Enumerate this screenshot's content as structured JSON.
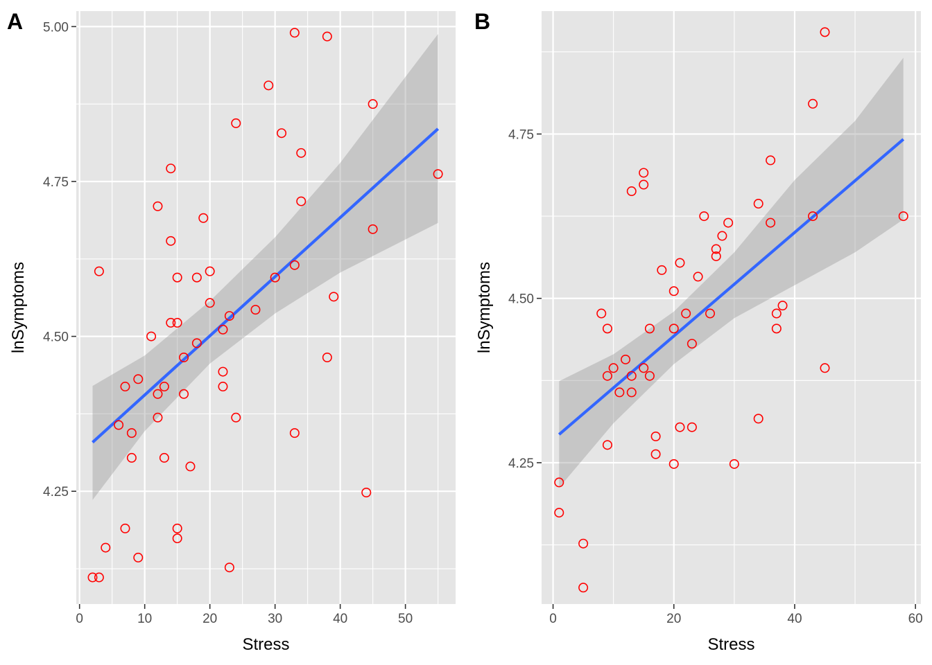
{
  "chart_data": [
    {
      "panel_label": "A",
      "type": "scatter",
      "xlabel": "Stress",
      "ylabel": "lnSymptoms",
      "xlim": [
        -0.5,
        57.7
      ],
      "ylim": [
        4.068,
        5.025
      ],
      "x_ticks": [
        0,
        10,
        20,
        30,
        40,
        50
      ],
      "y_ticks": [
        4.25,
        4.5,
        4.75,
        5.0
      ],
      "x_tick_labels": [
        "0",
        "10",
        "20",
        "30",
        "40",
        "50"
      ],
      "y_tick_labels": [
        "4.25",
        "4.50",
        "4.75",
        "5.00"
      ],
      "grid": true,
      "point_color": "#ff0000",
      "line_color": "#3366ff",
      "ribbon_color": "#999999",
      "points": [
        {
          "x": 2,
          "y": 4.111
        },
        {
          "x": 3,
          "y": 4.111
        },
        {
          "x": 3,
          "y": 4.605
        },
        {
          "x": 4,
          "y": 4.159
        },
        {
          "x": 6,
          "y": 4.357
        },
        {
          "x": 7,
          "y": 4.419
        },
        {
          "x": 7,
          "y": 4.19
        },
        {
          "x": 8,
          "y": 4.344
        },
        {
          "x": 8,
          "y": 4.304
        },
        {
          "x": 9,
          "y": 4.431
        },
        {
          "x": 9,
          "y": 4.143
        },
        {
          "x": 11,
          "y": 4.5
        },
        {
          "x": 12,
          "y": 4.71
        },
        {
          "x": 12,
          "y": 4.407
        },
        {
          "x": 12,
          "y": 4.369
        },
        {
          "x": 13,
          "y": 4.419
        },
        {
          "x": 13,
          "y": 4.304
        },
        {
          "x": 14,
          "y": 4.771
        },
        {
          "x": 14,
          "y": 4.654
        },
        {
          "x": 14,
          "y": 4.522
        },
        {
          "x": 15,
          "y": 4.595
        },
        {
          "x": 15,
          "y": 4.522
        },
        {
          "x": 15,
          "y": 4.19
        },
        {
          "x": 15,
          "y": 4.174
        },
        {
          "x": 16,
          "y": 4.466
        },
        {
          "x": 16,
          "y": 4.407
        },
        {
          "x": 17,
          "y": 4.29
        },
        {
          "x": 18,
          "y": 4.595
        },
        {
          "x": 18,
          "y": 4.489
        },
        {
          "x": 19,
          "y": 4.691
        },
        {
          "x": 20,
          "y": 4.605
        },
        {
          "x": 20,
          "y": 4.554
        },
        {
          "x": 22,
          "y": 4.511
        },
        {
          "x": 22,
          "y": 4.443
        },
        {
          "x": 22,
          "y": 4.419
        },
        {
          "x": 23,
          "y": 4.533
        },
        {
          "x": 23,
          "y": 4.127
        },
        {
          "x": 24,
          "y": 4.844
        },
        {
          "x": 24,
          "y": 4.369
        },
        {
          "x": 27,
          "y": 4.543
        },
        {
          "x": 29,
          "y": 4.905
        },
        {
          "x": 30,
          "y": 4.595
        },
        {
          "x": 31,
          "y": 4.828
        },
        {
          "x": 33,
          "y": 4.99
        },
        {
          "x": 33,
          "y": 4.615
        },
        {
          "x": 33,
          "y": 4.344
        },
        {
          "x": 34,
          "y": 4.796
        },
        {
          "x": 34,
          "y": 4.718
        },
        {
          "x": 38,
          "y": 4.984
        },
        {
          "x": 38,
          "y": 4.466
        },
        {
          "x": 39,
          "y": 4.564
        },
        {
          "x": 44,
          "y": 4.248
        },
        {
          "x": 45,
          "y": 4.875
        },
        {
          "x": 45,
          "y": 4.673
        },
        {
          "x": 55,
          "y": 4.762
        }
      ],
      "fit": {
        "x": [
          2,
          55
        ],
        "y": [
          4.329,
          4.835
        ]
      },
      "ribbon": [
        {
          "x": 2,
          "lo": 4.236,
          "hi": 4.42
        },
        {
          "x": 10,
          "lo": 4.347,
          "hi": 4.469
        },
        {
          "x": 20,
          "lo": 4.456,
          "hi": 4.557
        },
        {
          "x": 30,
          "lo": 4.537,
          "hi": 4.66
        },
        {
          "x": 40,
          "lo": 4.603,
          "hi": 4.78
        },
        {
          "x": 55,
          "lo": 4.683,
          "hi": 4.988
        }
      ]
    },
    {
      "panel_label": "B",
      "type": "scatter",
      "xlabel": "Stress",
      "ylabel": "lnSymptoms",
      "xlim": [
        -1.9,
        60.9
      ],
      "ylim": [
        4.035,
        4.937
      ],
      "x_ticks": [
        0,
        20,
        40,
        60
      ],
      "y_ticks": [
        4.25,
        4.5,
        4.75
      ],
      "x_tick_labels": [
        "0",
        "20",
        "40",
        "60"
      ],
      "y_tick_labels": [
        "4.25",
        "4.50",
        "4.75"
      ],
      "grid": true,
      "point_color": "#ff0000",
      "line_color": "#3366ff",
      "ribbon_color": "#999999",
      "points": [
        {
          "x": 1,
          "y": 4.22
        },
        {
          "x": 1,
          "y": 4.174
        },
        {
          "x": 5,
          "y": 4.127
        },
        {
          "x": 5,
          "y": 4.06
        },
        {
          "x": 8,
          "y": 4.477
        },
        {
          "x": 9,
          "y": 4.454
        },
        {
          "x": 9,
          "y": 4.382
        },
        {
          "x": 9,
          "y": 4.277
        },
        {
          "x": 10,
          "y": 4.394
        },
        {
          "x": 11,
          "y": 4.357
        },
        {
          "x": 12,
          "y": 4.407
        },
        {
          "x": 13,
          "y": 4.382
        },
        {
          "x": 13,
          "y": 4.357
        },
        {
          "x": 13,
          "y": 4.663
        },
        {
          "x": 15,
          "y": 4.691
        },
        {
          "x": 15,
          "y": 4.673
        },
        {
          "x": 15,
          "y": 4.394
        },
        {
          "x": 16,
          "y": 4.454
        },
        {
          "x": 16,
          "y": 4.382
        },
        {
          "x": 17,
          "y": 4.29
        },
        {
          "x": 17,
          "y": 4.263
        },
        {
          "x": 18,
          "y": 4.543
        },
        {
          "x": 20,
          "y": 4.511
        },
        {
          "x": 20,
          "y": 4.454
        },
        {
          "x": 20,
          "y": 4.248
        },
        {
          "x": 21,
          "y": 4.554
        },
        {
          "x": 21,
          "y": 4.304
        },
        {
          "x": 22,
          "y": 4.477
        },
        {
          "x": 23,
          "y": 4.431
        },
        {
          "x": 23,
          "y": 4.304
        },
        {
          "x": 24,
          "y": 4.533
        },
        {
          "x": 25,
          "y": 4.625
        },
        {
          "x": 26,
          "y": 4.477
        },
        {
          "x": 27,
          "y": 4.575
        },
        {
          "x": 27,
          "y": 4.564
        },
        {
          "x": 28,
          "y": 4.595
        },
        {
          "x": 29,
          "y": 4.615
        },
        {
          "x": 30,
          "y": 4.248
        },
        {
          "x": 34,
          "y": 4.644
        },
        {
          "x": 34,
          "y": 4.317
        },
        {
          "x": 36,
          "y": 4.71
        },
        {
          "x": 36,
          "y": 4.615
        },
        {
          "x": 37,
          "y": 4.477
        },
        {
          "x": 37,
          "y": 4.454
        },
        {
          "x": 38,
          "y": 4.489
        },
        {
          "x": 43,
          "y": 4.796
        },
        {
          "x": 43,
          "y": 4.625
        },
        {
          "x": 45,
          "y": 4.905
        },
        {
          "x": 45,
          "y": 4.394
        },
        {
          "x": 58,
          "y": 4.625
        }
      ],
      "fit": {
        "x": [
          1,
          58
        ],
        "y": [
          4.293,
          4.742
        ]
      },
      "ribbon": [
        {
          "x": 1,
          "lo": 4.212,
          "hi": 4.374
        },
        {
          "x": 10,
          "lo": 4.31,
          "hi": 4.415
        },
        {
          "x": 20,
          "lo": 4.4,
          "hi": 4.48
        },
        {
          "x": 30,
          "lo": 4.47,
          "hi": 4.57
        },
        {
          "x": 40,
          "lo": 4.52,
          "hi": 4.68
        },
        {
          "x": 50,
          "lo": 4.57,
          "hi": 4.77
        },
        {
          "x": 58,
          "lo": 4.62,
          "hi": 4.866
        }
      ]
    }
  ]
}
